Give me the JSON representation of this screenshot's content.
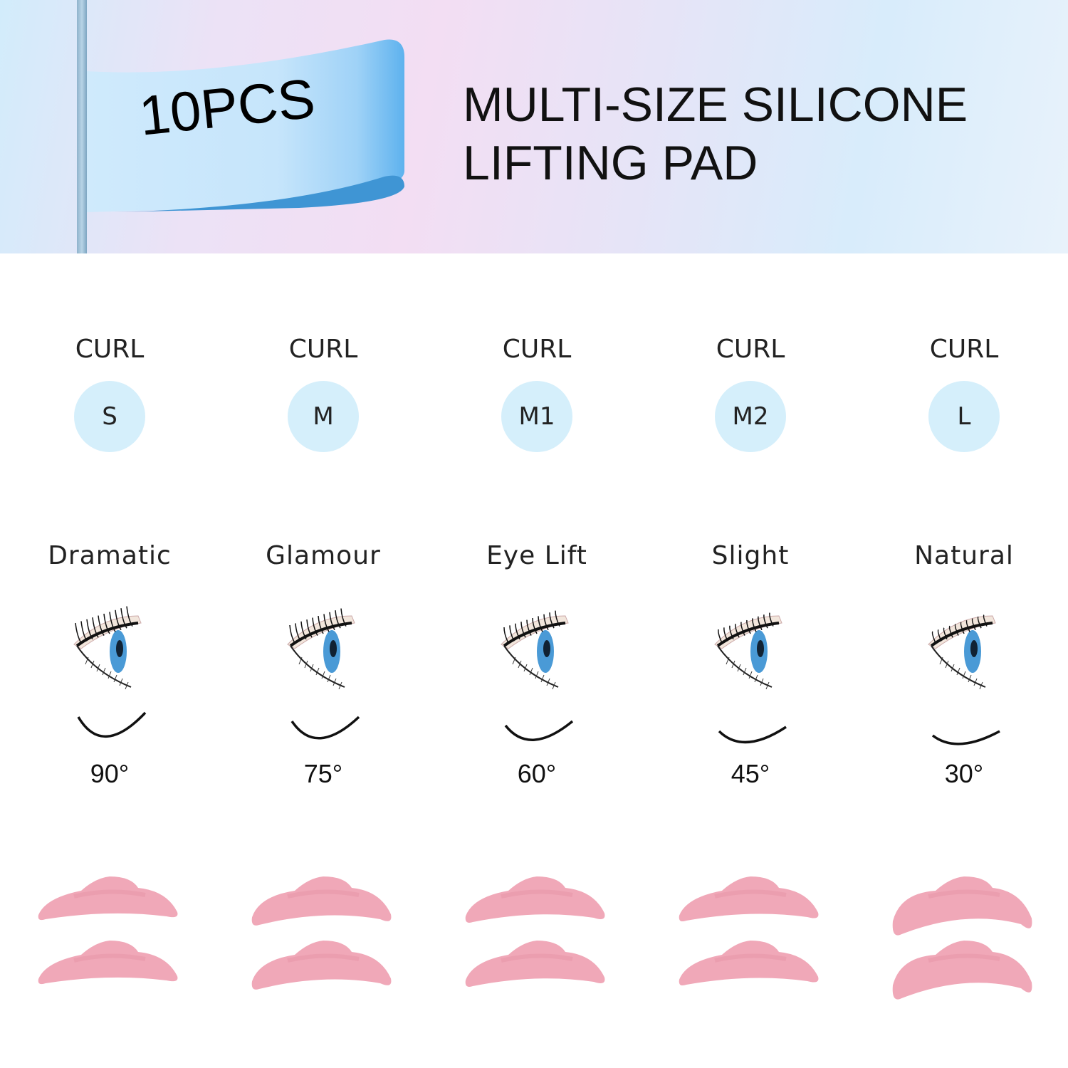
{
  "header": {
    "badge": "10PCS",
    "title_line1": "MULTI-SIZE SILICONE",
    "title_line2": "LIFTING PAD"
  },
  "colors": {
    "circle": "#d5effb",
    "pad": "#f0a8b8",
    "flag": "#8ccbf5"
  },
  "sizes": [
    {
      "curl_label": "CURL",
      "size": "S",
      "style": "Dramatic",
      "degree": "90°",
      "icon": "eye-icon"
    },
    {
      "curl_label": "CURL",
      "size": "M",
      "style": "Glamour",
      "degree": "75°",
      "icon": "eye-icon"
    },
    {
      "curl_label": "CURL",
      "size": "M1",
      "style": "Eye Lift",
      "degree": "60°",
      "icon": "eye-icon"
    },
    {
      "curl_label": "CURL",
      "size": "M2",
      "style": "Slight",
      "degree": "45°",
      "icon": "eye-icon"
    },
    {
      "curl_label": "CURL",
      "size": "L",
      "style": "Natural",
      "degree": "30°",
      "icon": "eye-icon"
    }
  ]
}
